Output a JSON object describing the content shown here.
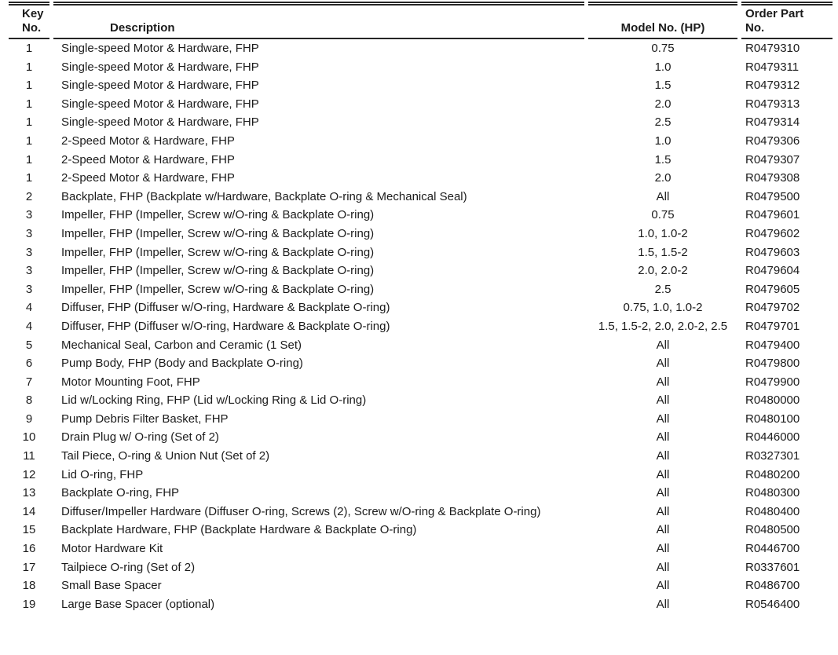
{
  "colors": {
    "text": "#1b1b1b",
    "rule": "#262626",
    "background": "#ffffff"
  },
  "table": {
    "columns": {
      "key": {
        "line1": "Key",
        "line2": "No."
      },
      "description": {
        "label": "Description"
      },
      "model": {
        "label": "Model No. (HP)"
      },
      "order": {
        "line1": "Order Part",
        "line2": "No."
      }
    },
    "rows": [
      {
        "key": "1",
        "description": "Single-speed Motor & Hardware, FHP",
        "model": "0.75",
        "order": "R0479310"
      },
      {
        "key": "1",
        "description": "Single-speed Motor & Hardware, FHP",
        "model": "1.0",
        "order": "R0479311"
      },
      {
        "key": "1",
        "description": "Single-speed Motor & Hardware, FHP",
        "model": "1.5",
        "order": "R0479312"
      },
      {
        "key": "1",
        "description": "Single-speed Motor & Hardware, FHP",
        "model": "2.0",
        "order": "R0479313"
      },
      {
        "key": "1",
        "description": "Single-speed Motor & Hardware, FHP",
        "model": "2.5",
        "order": "R0479314"
      },
      {
        "key": "1",
        "description": "2-Speed Motor & Hardware, FHP",
        "model": "1.0",
        "order": "R0479306"
      },
      {
        "key": "1",
        "description": "2-Speed Motor & Hardware, FHP",
        "model": "1.5",
        "order": "R0479307"
      },
      {
        "key": "1",
        "description": "2-Speed Motor & Hardware, FHP",
        "model": "2.0",
        "order": "R0479308"
      },
      {
        "key": "2",
        "description": "Backplate, FHP (Backplate w/Hardware, Backplate O-ring & Mechanical Seal)",
        "model": "All",
        "order": "R0479500"
      },
      {
        "key": "3",
        "description": "Impeller, FHP (Impeller, Screw w/O-ring & Backplate O-ring)",
        "model": "0.75",
        "order": "R0479601"
      },
      {
        "key": "3",
        "description": "Impeller, FHP (Impeller, Screw w/O-ring & Backplate O-ring)",
        "model": "1.0, 1.0-2",
        "order": "R0479602"
      },
      {
        "key": "3",
        "description": "Impeller, FHP (Impeller, Screw w/O-ring & Backplate O-ring)",
        "model": "1.5, 1.5-2",
        "order": "R0479603"
      },
      {
        "key": "3",
        "description": "Impeller, FHP (Impeller, Screw w/O-ring & Backplate O-ring)",
        "model": "2.0, 2.0-2",
        "order": "R0479604"
      },
      {
        "key": "3",
        "description": "Impeller, FHP (Impeller, Screw w/O-ring & Backplate O-ring)",
        "model": "2.5",
        "order": "R0479605"
      },
      {
        "key": "4",
        "description": "Diffuser, FHP (Diffuser w/O-ring, Hardware & Backplate O-ring)",
        "model": "0.75, 1.0, 1.0-2",
        "order": "R0479702"
      },
      {
        "key": "4",
        "description": "Diffuser, FHP (Diffuser w/O-ring, Hardware & Backplate O-ring)",
        "model": "1.5, 1.5-2, 2.0, 2.0-2, 2.5",
        "order": "R0479701"
      },
      {
        "key": "5",
        "description": "Mechanical Seal, Carbon and Ceramic (1 Set)",
        "model": "All",
        "order": "R0479400"
      },
      {
        "key": "6",
        "description": "Pump Body, FHP (Body and Backplate O-ring)",
        "model": "All",
        "order": "R0479800"
      },
      {
        "key": "7",
        "description": "Motor Mounting Foot, FHP",
        "model": "All",
        "order": "R0479900"
      },
      {
        "key": "8",
        "description": "Lid w/Locking Ring, FHP (Lid w/Locking Ring & Lid O-ring)",
        "model": "All",
        "order": "R0480000"
      },
      {
        "key": "9",
        "description": "Pump Debris Filter Basket, FHP",
        "model": "All",
        "order": "R0480100"
      },
      {
        "key": "10",
        "description": "Drain Plug w/ O-ring (Set of 2)",
        "model": "All",
        "order": "R0446000"
      },
      {
        "key": "11",
        "description": "Tail Piece, O-ring & Union Nut (Set of 2)",
        "model": "All",
        "order": "R0327301"
      },
      {
        "key": "12",
        "description": "Lid O-ring, FHP",
        "model": "All",
        "order": "R0480200"
      },
      {
        "key": "13",
        "description": "Backplate O-ring, FHP",
        "model": "All",
        "order": "R0480300"
      },
      {
        "key": "14",
        "description": "Diffuser/Impeller Hardware (Diffuser O-ring, Screws (2), Screw w/O-ring & Backplate O-ring)",
        "model": "All",
        "order": "R0480400"
      },
      {
        "key": "15",
        "description": "Backplate Hardware, FHP (Backplate Hardware & Backplate O-ring)",
        "model": "All",
        "order": "R0480500"
      },
      {
        "key": "16",
        "description": "Motor Hardware Kit",
        "model": "All",
        "order": "R0446700"
      },
      {
        "key": "17",
        "description": "Tailpiece O-ring (Set of 2)",
        "model": "All",
        "order": "R0337601"
      },
      {
        "key": "18",
        "description": "Small Base Spacer",
        "model": "All",
        "order": "R0486700"
      },
      {
        "key": "19",
        "description": "Large Base Spacer (optional)",
        "model": "All",
        "order": "R0546400"
      }
    ]
  }
}
